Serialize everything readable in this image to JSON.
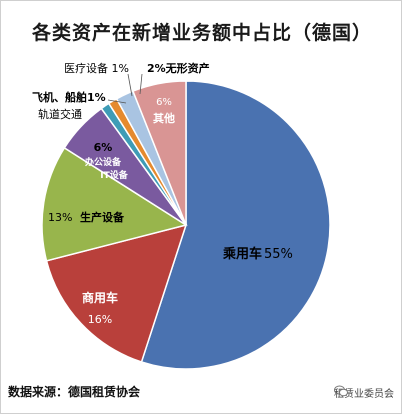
{
  "title": "各类资产在新增业务额中占比（德国）",
  "footer": "数据来源：德国租赁协会",
  "brand": "租赁业委员会",
  "chart_data": {
    "type": "pie",
    "start_angle_deg": 0,
    "slices": [
      {
        "name": "乘用车",
        "value": 55,
        "label": "55%",
        "color": "#4a72b0"
      },
      {
        "name": "商用车",
        "value": 16,
        "label": "16%",
        "color": "#b9403b"
      },
      {
        "name": "生产设备",
        "value": 13,
        "label": "13%",
        "color": "#98b54c"
      },
      {
        "name": "办公设备 IT设备",
        "value": 6,
        "label": "6%",
        "color": "#7a5a9f"
      },
      {
        "name": "飞机、船舶 轨道交通",
        "value": 1,
        "label": "1%",
        "color": "#3e9cb6"
      },
      {
        "name": "医疗设备",
        "value": 1,
        "label": "1%",
        "color": "#e58a2e"
      },
      {
        "name": "无形资产",
        "value": 2,
        "label": "2%",
        "color": "#a9c4e2"
      },
      {
        "name": "其他",
        "value": 6,
        "label": "6%",
        "color": "#d99594"
      }
    ]
  },
  "labels": {
    "car_name": "乘用车",
    "car_pct": "55%",
    "truck_name": "商用车",
    "truck_pct": "16%",
    "prod_pct": "13%",
    "prod_name": "生产设备",
    "office_pct": "6%",
    "office_name": "办公设备",
    "it_name": "IT设备",
    "aircraft_line1": "飞机、船舶1%",
    "aircraft_line2": "轨道交通",
    "medical": "医疗设备 1%",
    "intangible": "2%无形资产",
    "other_pct": "6%",
    "other_name": "其他"
  }
}
